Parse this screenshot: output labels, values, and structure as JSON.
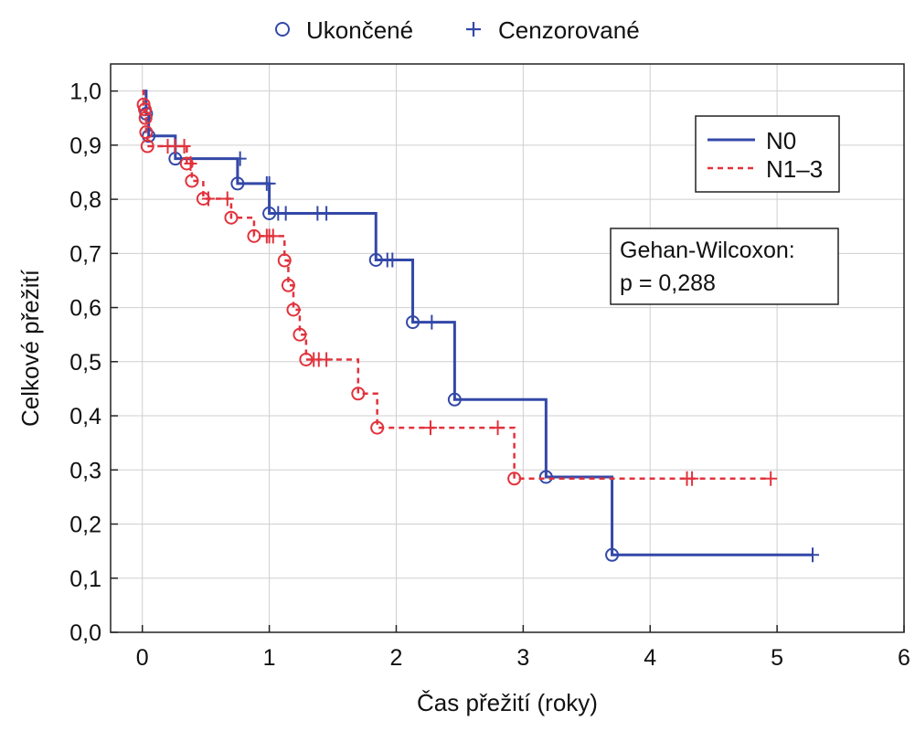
{
  "chart_data": {
    "type": "line",
    "subtype": "kaplan-meier step",
    "xlabel": "Čas přežití (roky)",
    "ylabel": "Celkové přežití",
    "xlim": [
      -0.25,
      6
    ],
    "ylim": [
      0,
      1.05
    ],
    "x_ticks": [
      0,
      1,
      2,
      3,
      4,
      5,
      6
    ],
    "y_ticks": [
      0.0,
      0.1,
      0.2,
      0.3,
      0.4,
      0.5,
      0.6,
      0.7,
      0.8,
      0.9,
      1.0
    ],
    "x_tick_labels": [
      "0",
      "1",
      "2",
      "3",
      "4",
      "5",
      "6"
    ],
    "y_tick_labels": [
      "0,0",
      "0,1",
      "0,2",
      "0,3",
      "0,4",
      "0,5",
      "0,6",
      "0,7",
      "0,8",
      "0,9",
      "1,0"
    ],
    "grid": true,
    "marker_legend": {
      "position": "top-center",
      "items": [
        {
          "marker": "circle",
          "label": "Ukončené"
        },
        {
          "marker": "plus",
          "label": "Cenzorované"
        }
      ]
    },
    "legend": {
      "position": "top-right"
    },
    "annotation": {
      "line1": "Gehan-Wilcoxon:",
      "line2": "p = 0,288"
    },
    "series": [
      {
        "name": "N0",
        "color": "#3348a8",
        "dash": "solid",
        "steps": [
          [
            0,
            1.0
          ],
          [
            0.03,
            0.958
          ],
          [
            0.05,
            0.917
          ],
          [
            0.26,
            0.875
          ],
          [
            0.75,
            0.829
          ],
          [
            1.0,
            0.774
          ],
          [
            1.84,
            0.688
          ],
          [
            2.13,
            0.573
          ],
          [
            2.46,
            0.43
          ],
          [
            3.18,
            0.287
          ],
          [
            3.7,
            0.143
          ]
        ],
        "end_x": 5.28,
        "events": [
          [
            0.03,
            0.958
          ],
          [
            0.05,
            0.917
          ],
          [
            0.26,
            0.875
          ],
          [
            0.75,
            0.829
          ],
          [
            1.0,
            0.774
          ],
          [
            1.84,
            0.688
          ],
          [
            2.13,
            0.573
          ],
          [
            2.46,
            0.43
          ],
          [
            3.18,
            0.287
          ],
          [
            3.7,
            0.143
          ]
        ],
        "censored": [
          [
            0.77,
            0.875
          ],
          [
            0.98,
            0.829
          ],
          [
            1.0,
            0.829
          ],
          [
            1.07,
            0.774
          ],
          [
            1.13,
            0.774
          ],
          [
            1.38,
            0.774
          ],
          [
            1.45,
            0.774
          ],
          [
            1.93,
            0.688
          ],
          [
            1.97,
            0.688
          ],
          [
            2.28,
            0.573
          ],
          [
            5.28,
            0.143
          ]
        ]
      },
      {
        "name": "N1–3",
        "color": "#e2323c",
        "dash": "dashed",
        "steps": [
          [
            0,
            1.0
          ],
          [
            0.01,
            0.975
          ],
          [
            0.02,
            0.966
          ],
          [
            0.025,
            0.95
          ],
          [
            0.03,
            0.924
          ],
          [
            0.04,
            0.898
          ],
          [
            0.35,
            0.866
          ],
          [
            0.39,
            0.834
          ],
          [
            0.48,
            0.801
          ],
          [
            0.7,
            0.766
          ],
          [
            0.88,
            0.732
          ],
          [
            1.12,
            0.687
          ],
          [
            1.15,
            0.641
          ],
          [
            1.19,
            0.596
          ],
          [
            1.24,
            0.55
          ],
          [
            1.29,
            0.504
          ],
          [
            1.7,
            0.441
          ],
          [
            1.85,
            0.378
          ],
          [
            2.93,
            0.284
          ]
        ],
        "end_x": 4.95,
        "events": [
          [
            0.01,
            0.975
          ],
          [
            0.02,
            0.966
          ],
          [
            0.025,
            0.95
          ],
          [
            0.03,
            0.924
          ],
          [
            0.04,
            0.898
          ],
          [
            0.35,
            0.866
          ],
          [
            0.39,
            0.834
          ],
          [
            0.48,
            0.801
          ],
          [
            0.7,
            0.766
          ],
          [
            0.88,
            0.732
          ],
          [
            1.12,
            0.687
          ],
          [
            1.15,
            0.641
          ],
          [
            1.19,
            0.596
          ],
          [
            1.24,
            0.55
          ],
          [
            1.29,
            0.504
          ],
          [
            1.7,
            0.441
          ],
          [
            1.85,
            0.378
          ],
          [
            2.93,
            0.284
          ]
        ],
        "censored": [
          [
            0.2,
            0.898
          ],
          [
            0.26,
            0.898
          ],
          [
            0.33,
            0.898
          ],
          [
            0.38,
            0.866
          ],
          [
            0.52,
            0.801
          ],
          [
            0.67,
            0.801
          ],
          [
            0.98,
            0.732
          ],
          [
            1.0,
            0.732
          ],
          [
            1.03,
            0.732
          ],
          [
            1.35,
            0.504
          ],
          [
            1.39,
            0.504
          ],
          [
            1.45,
            0.504
          ],
          [
            2.27,
            0.378
          ],
          [
            2.8,
            0.378
          ],
          [
            4.29,
            0.284
          ],
          [
            4.33,
            0.284
          ],
          [
            4.95,
            0.284
          ]
        ]
      }
    ]
  }
}
